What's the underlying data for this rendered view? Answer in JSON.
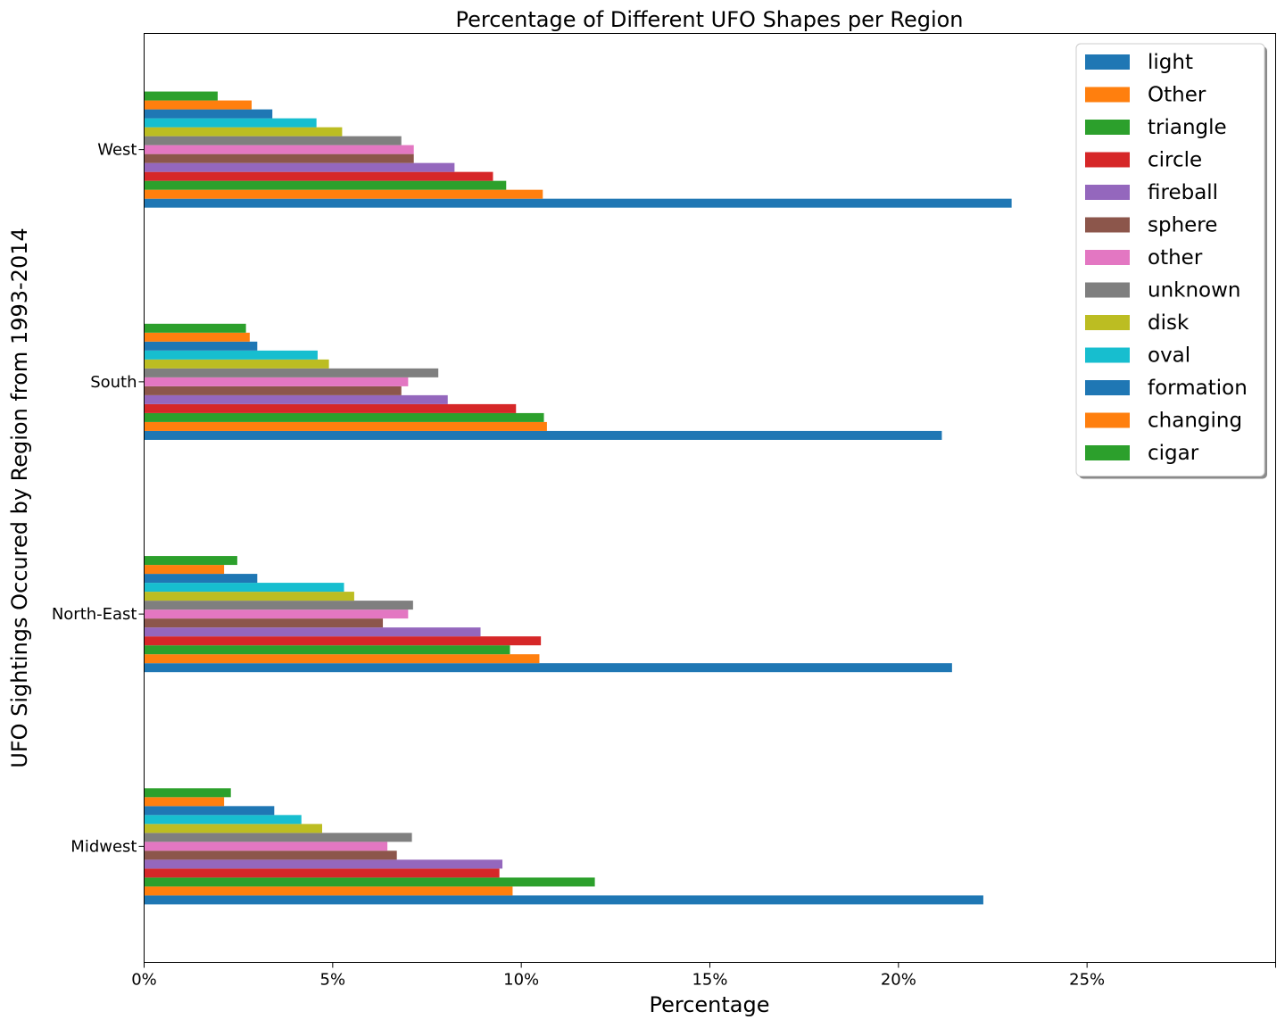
{
  "chart_data": {
    "type": "bar",
    "orientation": "horizontal",
    "title": "Percentage of Different UFO Shapes per Region",
    "xlabel": "Percentage",
    "ylabel": "UFO Sightings Occured by Region from 1993-2014",
    "xlim": [
      0,
      30
    ],
    "xticks": [
      {
        "value": 0,
        "label": "0%"
      },
      {
        "value": 5,
        "label": "5%"
      },
      {
        "value": 10,
        "label": "10%"
      },
      {
        "value": 15,
        "label": "15%"
      },
      {
        "value": 20,
        "label": "20%"
      },
      {
        "value": 25,
        "label": "25%"
      }
    ],
    "categories": [
      "Midwest",
      "North-East",
      "South",
      "West"
    ],
    "grid": false,
    "legend": "top-right",
    "series": [
      {
        "name": "light",
        "color": "#1f77b4",
        "values": [
          22.25,
          21.42,
          21.15,
          23.0
        ]
      },
      {
        "name": "Other",
        "color": "#ff7f0e",
        "values": [
          9.77,
          10.48,
          10.68,
          10.57
        ]
      },
      {
        "name": "triangle",
        "color": "#2ca02c",
        "values": [
          11.95,
          9.7,
          10.6,
          9.6
        ]
      },
      {
        "name": "circle",
        "color": "#d62728",
        "values": [
          9.42,
          10.52,
          9.86,
          9.25
        ]
      },
      {
        "name": "fireball",
        "color": "#9467bd",
        "values": [
          9.5,
          8.92,
          8.05,
          8.23
        ]
      },
      {
        "name": "sphere",
        "color": "#8c564b",
        "values": [
          6.7,
          6.33,
          6.82,
          7.15
        ]
      },
      {
        "name": "other",
        "color": "#e377c2",
        "values": [
          6.45,
          7.0,
          7.0,
          7.15
        ]
      },
      {
        "name": "unknown",
        "color": "#7f7f7f",
        "values": [
          7.1,
          7.13,
          7.8,
          6.82
        ]
      },
      {
        "name": "disk",
        "color": "#bcbd22",
        "values": [
          4.72,
          5.57,
          4.9,
          5.25
        ]
      },
      {
        "name": "oval",
        "color": "#17becf",
        "values": [
          4.17,
          5.3,
          4.6,
          4.57
        ]
      },
      {
        "name": "formation",
        "color": "#1f77b4",
        "values": [
          3.45,
          3.0,
          3.0,
          3.4
        ]
      },
      {
        "name": "changing",
        "color": "#ff7f0e",
        "values": [
          2.12,
          2.12,
          2.8,
          2.85
        ]
      },
      {
        "name": "cigar",
        "color": "#2ca02c",
        "values": [
          2.3,
          2.47,
          2.7,
          1.95
        ]
      }
    ]
  }
}
